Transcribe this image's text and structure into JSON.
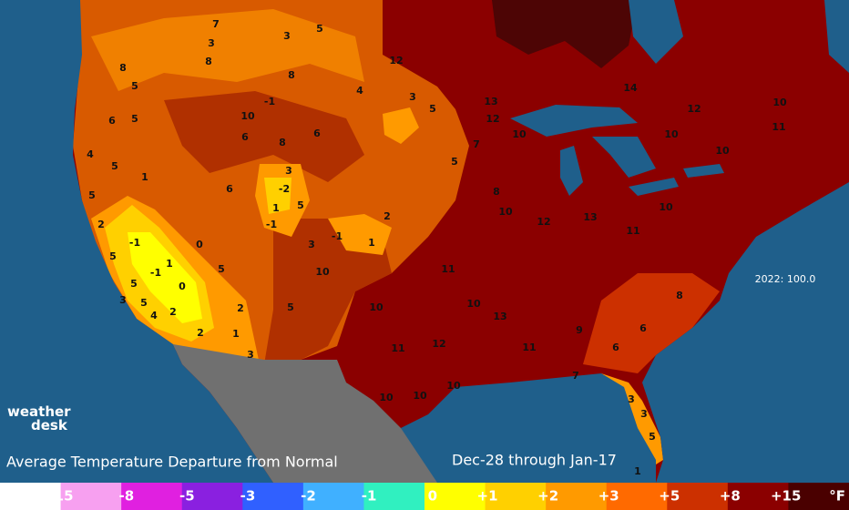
{
  "map": {
    "title": "Average Temperature Departure from Normal",
    "date_range": "Dec-28 through Jan-17",
    "annotation": "2022: 100.0",
    "logo": {
      "line1": "weather",
      "line2": "desk"
    },
    "stations": [
      7,
      3,
      8,
      8,
      5,
      3,
      5,
      8,
      4,
      12,
      14,
      12,
      10,
      11,
      13,
      12,
      10,
      10,
      10,
      6,
      5,
      4,
      5,
      1,
      5,
      6,
      6,
      10,
      -1,
      8,
      6,
      3,
      -2,
      1,
      -1,
      5,
      3,
      -1,
      1,
      2,
      3,
      5,
      5,
      7,
      8,
      10,
      12,
      13,
      11,
      10,
      2,
      5,
      -1,
      1,
      -1,
      0,
      5,
      3,
      5,
      4,
      2,
      2,
      1,
      2,
      3,
      5,
      0,
      10,
      5,
      10,
      11,
      12,
      10,
      13,
      11,
      9,
      6,
      3,
      3,
      5,
      1,
      8,
      6,
      7,
      10,
      10,
      10,
      11
    ],
    "legend": {
      "labels": [
        "-15",
        "-8",
        "-5",
        "-3",
        "-2",
        "-1",
        "0",
        "+1",
        "+2",
        "+3",
        "+5",
        "+8",
        "+15"
      ],
      "unit": "°F",
      "colors": [
        "#ffffff",
        "#f7a0f0",
        "#e020e0",
        "#8a20e0",
        "#3060ff",
        "#40b0ff",
        "#30f0c0",
        "#ffff00",
        "#ffd000",
        "#ff9a00",
        "#ff6a00",
        "#cc3000",
        "#8b0000",
        "#4a0000"
      ]
    }
  }
}
